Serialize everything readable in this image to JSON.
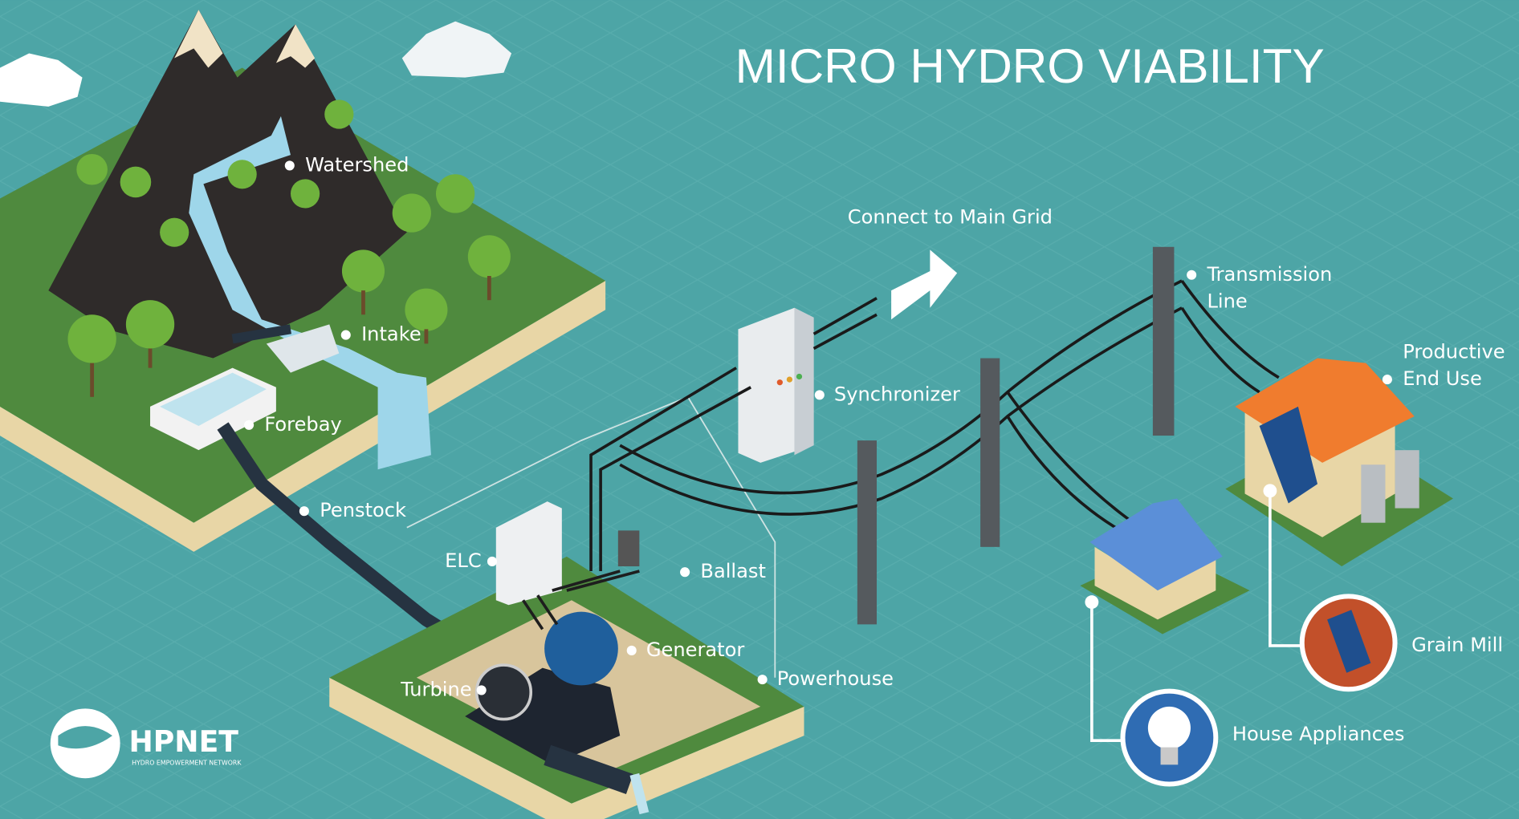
{
  "title": "MICRO HYDRO VIABILITY",
  "labels": {
    "watershed": "Watershed",
    "intake": "Intake",
    "forebay": "Forebay",
    "penstock": "Penstock",
    "elc": "ELC",
    "ballast": "Ballast",
    "generator": "Generator",
    "turbine": "Turbine",
    "powerhouse": "Powerhouse",
    "synchronizer": "Synchronizer",
    "connect_to_main_grid": "Connect to Main Grid",
    "transmission_line": [
      "Transmission",
      "Line"
    ],
    "productive_end_use": [
      "Productive",
      "End Use"
    ],
    "grain_mill": "Grain Mill",
    "house_appliances": "House Appliances"
  },
  "logo": {
    "name": "HPNET",
    "tagline": "HYDRO EMPOWERMENT NETWORK"
  }
}
